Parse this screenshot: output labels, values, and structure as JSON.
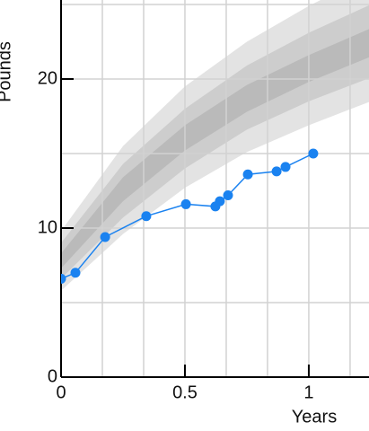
{
  "chart_data": {
    "type": "line",
    "y_label": "Pounds",
    "x_label": "Years",
    "xlim": [
      0,
      1.243
    ],
    "ylim": [
      0,
      25.3
    ],
    "xticks": [
      0,
      0.5,
      1
    ],
    "yticks": [
      0,
      10,
      20
    ],
    "x_grid": [
      0,
      0.1667,
      0.3333,
      0.5,
      0.6667,
      0.8333,
      1,
      1.1667
    ],
    "y_grid": [
      5,
      10,
      15,
      20,
      25
    ],
    "grid": true,
    "bands": [
      {
        "color": "#e3e3e3",
        "x": [
          0,
          0.25,
          0.5,
          0.75,
          1,
          1.25
        ],
        "lower": [
          5.8,
          9.6,
          12.7,
          15.1,
          16.9,
          18.5
        ],
        "upper": [
          9.8,
          15.5,
          19.5,
          22.5,
          24.9,
          27
        ]
      },
      {
        "color": "#cdcdcd",
        "x": [
          0,
          0.25,
          0.5,
          0.75,
          1,
          1.25
        ],
        "lower": [
          6.6,
          10.7,
          14.0,
          16.6,
          18.5,
          20.1
        ],
        "upper": [
          9.0,
          14.3,
          18.0,
          20.9,
          23.1,
          25.0
        ]
      },
      {
        "color": "#bababa",
        "x": [
          0,
          0.25,
          0.5,
          0.75,
          1,
          1.25
        ],
        "lower": [
          7.3,
          11.8,
          15.2,
          17.8,
          19.8,
          21.5
        ],
        "upper": [
          8.3,
          13.4,
          16.9,
          19.6,
          21.6,
          23.4
        ]
      }
    ],
    "series": [
      {
        "color": "#1a82f0",
        "x": [
          0,
          0.058,
          0.178,
          0.344,
          0.504,
          0.623,
          0.641,
          0.674,
          0.754,
          0.87,
          0.906,
          1.018
        ],
        "values": [
          6.6,
          7.0,
          9.4,
          10.8,
          11.6,
          11.45,
          11.8,
          12.2,
          13.6,
          13.8,
          14.1,
          15.0
        ]
      }
    ]
  }
}
